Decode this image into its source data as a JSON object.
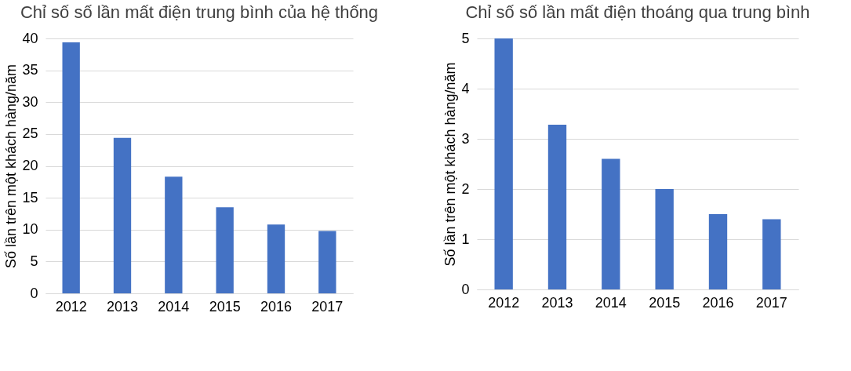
{
  "chart_data": [
    {
      "type": "bar",
      "title": "Chỉ số số lần mất điện trung bình\ncủa hệ thống",
      "ylabel": "Số lần trên một khách hàng/năm",
      "categories": [
        "2012",
        "2013",
        "2014",
        "2015",
        "2016",
        "2017"
      ],
      "values": [
        39.4,
        24.4,
        18.3,
        13.5,
        10.8,
        9.8
      ],
      "color": "#4472c4",
      "ylim": [
        0,
        40
      ],
      "yticks": [
        0,
        5,
        10,
        15,
        20,
        25,
        30,
        35,
        40
      ],
      "grid": "y"
    },
    {
      "type": "bar",
      "title": "Chỉ số số lần mất điện\nthoáng qua trung bình",
      "ylabel": "Số lần trên một khách hàng/năm",
      "categories": [
        "2012",
        "2013",
        "2014",
        "2015",
        "2016",
        "2017"
      ],
      "values": [
        5.0,
        3.28,
        2.6,
        2.0,
        1.5,
        1.4
      ],
      "color": "#4472c4",
      "ylim": [
        0,
        5
      ],
      "yticks": [
        0,
        1,
        2,
        3,
        4,
        5
      ],
      "grid": "y"
    }
  ]
}
